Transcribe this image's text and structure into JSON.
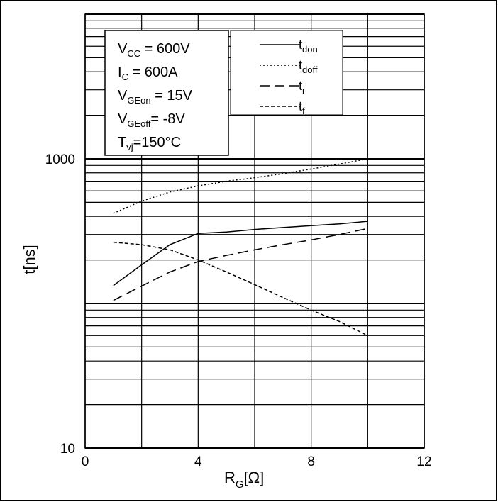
{
  "chart_data": {
    "type": "line",
    "xlabel": "R",
    "xlabel_sub": "G",
    "xlabel_unit": "[Ω]",
    "ylabel": "t[ns]",
    "xlim": [
      0,
      12
    ],
    "ylim": [
      10,
      10000
    ],
    "yscale": "log",
    "grid": true,
    "x_ticks": [
      "0",
      "4",
      "8",
      "12"
    ],
    "y_tick_labels": [
      "1000",
      "10"
    ],
    "legend_position": "top-right",
    "conditions": [
      {
        "main": "V",
        "sub": "CC",
        "rest": " = 600V"
      },
      {
        "main": "I",
        "sub": "C",
        "rest": " = 600A"
      },
      {
        "main": "V",
        "sub": "GEon",
        "rest": " = 15V"
      },
      {
        "main": "V",
        "sub": "GEoff",
        "rest": "= -8V"
      },
      {
        "main": "T",
        "sub": "vj",
        "rest": "=150°C"
      }
    ],
    "series": [
      {
        "name": "t_don",
        "main": "t",
        "sub": "don",
        "dash": "solid",
        "x": [
          1,
          2,
          3,
          4,
          5,
          6,
          7,
          8,
          9,
          10
        ],
        "y": [
          133,
          185,
          255,
          305,
          312,
          325,
          335,
          345,
          355,
          370
        ]
      },
      {
        "name": "t_doff",
        "main": "t",
        "sub": "doff",
        "dash": "dotted",
        "x": [
          1,
          2,
          3,
          4,
          5,
          6,
          7,
          8,
          9,
          10
        ],
        "y": [
          420,
          510,
          590,
          650,
          700,
          740,
          790,
          850,
          920,
          1000
        ]
      },
      {
        "name": "t_r",
        "main": "t",
        "sub": "r",
        "dash": "longdash",
        "x": [
          1,
          2,
          3,
          4,
          5,
          6,
          7,
          8,
          9,
          10
        ],
        "y": [
          105,
          132,
          165,
          195,
          215,
          235,
          255,
          275,
          300,
          330
        ]
      },
      {
        "name": "t_f",
        "main": "t",
        "sub": "f",
        "dash": "shortdash",
        "x": [
          1,
          2,
          3,
          4,
          5,
          6,
          7,
          8,
          9,
          10
        ],
        "y": [
          265,
          255,
          235,
          200,
          165,
          135,
          110,
          90,
          75,
          60
        ]
      }
    ]
  }
}
